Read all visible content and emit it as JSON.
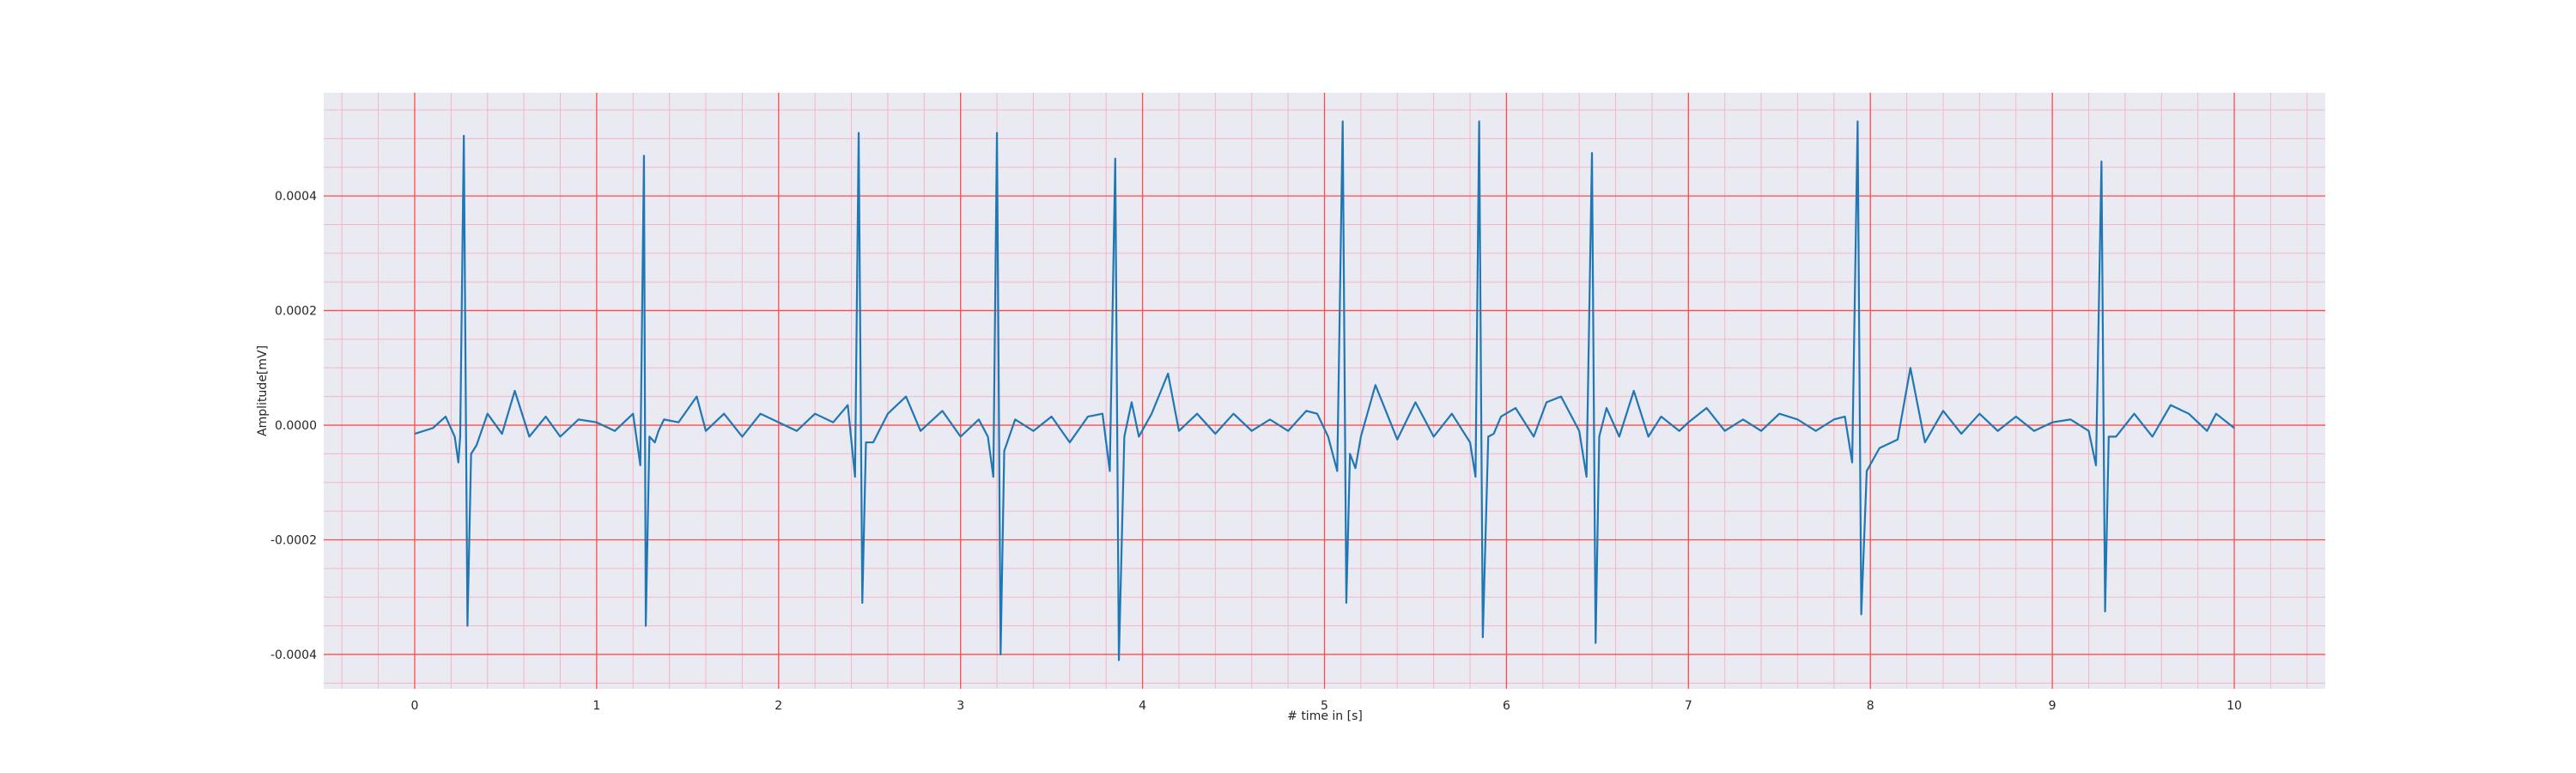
{
  "chart_data": {
    "type": "line",
    "xlabel": "# time in [s]",
    "ylabel": "Amplitude[mV]",
    "xlim": [
      -0.5,
      10.5
    ],
    "ylim": [
      -0.00046,
      0.00058
    ],
    "x_ticks": [
      0,
      1,
      2,
      3,
      4,
      5,
      6,
      7,
      8,
      9,
      10
    ],
    "x_tick_labels": [
      "0",
      "1",
      "2",
      "3",
      "4",
      "5",
      "6",
      "7",
      "8",
      "9",
      "10"
    ],
    "y_ticks": [
      -0.0004,
      -0.0002,
      0.0,
      0.0002,
      0.0004
    ],
    "y_tick_labels": [
      "-0.0004",
      "-0.0002",
      "0.0000",
      "0.0002",
      "0.0004"
    ],
    "grid": {
      "major": true,
      "minor": true,
      "major_color": "#ff4d4d",
      "minor_color": "#f4b6c6"
    },
    "background_color": "#eaeaf2",
    "line_color": "#1f77b4",
    "x_minor_step": 0.2,
    "y_minor_step": 5e-05,
    "series": [
      {
        "x": [
          0,
          0.1,
          0.17,
          0.22,
          0.24,
          0.25,
          0.27,
          0.29,
          0.31,
          0.34,
          0.4,
          0.48,
          0.55,
          0.63,
          0.72,
          0.8,
          0.9,
          1.0,
          1.1,
          1.2,
          1.24,
          1.26,
          1.27,
          1.29,
          1.32,
          1.34,
          1.37,
          1.45,
          1.55,
          1.6,
          1.7,
          1.8,
          1.9,
          2.0,
          2.1,
          2.2,
          2.3,
          2.38,
          2.42,
          2.44,
          2.46,
          2.48,
          2.52,
          2.6,
          2.7,
          2.78,
          2.9,
          3.0,
          3.1,
          3.15,
          3.18,
          3.2,
          3.22,
          3.24,
          3.3,
          3.4,
          3.5,
          3.6,
          3.7,
          3.78,
          3.82,
          3.85,
          3.87,
          3.9,
          3.94,
          3.98,
          4.05,
          4.14,
          4.2,
          4.3,
          4.4,
          4.5,
          4.6,
          4.7,
          4.8,
          4.9,
          4.96,
          5.02,
          5.07,
          5.1,
          5.12,
          5.14,
          5.17,
          5.2,
          5.28,
          5.4,
          5.5,
          5.6,
          5.7,
          5.8,
          5.83,
          5.85,
          5.87,
          5.9,
          5.93,
          5.97,
          6.05,
          6.15,
          6.22,
          6.3,
          6.4,
          6.44,
          6.47,
          6.49,
          6.51,
          6.55,
          6.62,
          6.7,
          6.78,
          6.85,
          6.95,
          7.0,
          7.1,
          7.2,
          7.3,
          7.4,
          7.5,
          7.6,
          7.7,
          7.8,
          7.86,
          7.9,
          7.93,
          7.95,
          7.98,
          8.05,
          8.15,
          8.22,
          8.3,
          8.4,
          8.5,
          8.6,
          8.7,
          8.8,
          8.9,
          9.0,
          9.1,
          9.2,
          9.24,
          9.27,
          9.29,
          9.31,
          9.35,
          9.45,
          9.55,
          9.65,
          9.75,
          9.85,
          9.9,
          10.0
        ],
        "y": [
          -1.5e-05,
          -5e-06,
          1.5e-05,
          -2e-05,
          -6.5e-05,
          -2e-05,
          0.000505,
          -0.00035,
          -5e-05,
          -3.5e-05,
          2e-05,
          -1.5e-05,
          6e-05,
          -2e-05,
          1.5e-05,
          -2e-05,
          1e-05,
          5e-06,
          -1e-05,
          2e-05,
          -7e-05,
          0.00047,
          -0.00035,
          -2e-05,
          -3e-05,
          -1e-05,
          1e-05,
          5e-06,
          5e-05,
          -1e-05,
          2e-05,
          -2e-05,
          2e-05,
          5e-06,
          -1e-05,
          2e-05,
          5e-06,
          3.5e-05,
          -9e-05,
          0.00051,
          -0.00031,
          -3e-05,
          -3e-05,
          2e-05,
          5e-05,
          -1e-05,
          2.5e-05,
          -2e-05,
          1e-05,
          -2e-05,
          -9e-05,
          0.00051,
          -0.0004,
          -4.5e-05,
          1e-05,
          -1e-05,
          1.5e-05,
          -3e-05,
          1.5e-05,
          2e-05,
          -8e-05,
          0.000465,
          -0.00041,
          -2e-05,
          4e-05,
          -2e-05,
          2e-05,
          9e-05,
          -1e-05,
          2e-05,
          -1.5e-05,
          2e-05,
          -1e-05,
          1e-05,
          -1e-05,
          2.5e-05,
          2e-05,
          -2e-05,
          -8e-05,
          0.00053,
          -0.00031,
          -5e-05,
          -7.5e-05,
          -2e-05,
          7e-05,
          -2.5e-05,
          4e-05,
          -2e-05,
          2e-05,
          -3e-05,
          -9e-05,
          0.00053,
          -0.00037,
          -2e-05,
          -1.5e-05,
          1.5e-05,
          3e-05,
          -2e-05,
          4e-05,
          5e-05,
          -1e-05,
          -9e-05,
          0.000475,
          -0.00038,
          -2e-05,
          3e-05,
          -2e-05,
          6e-05,
          -2e-05,
          1.5e-05,
          -1e-05,
          5e-06,
          3e-05,
          -1e-05,
          1e-05,
          -1e-05,
          2e-05,
          1e-05,
          -1e-05,
          1e-05,
          1.5e-05,
          -6.5e-05,
          0.00053,
          -0.00033,
          -8e-05,
          -4e-05,
          -2.5e-05,
          0.0001,
          -3e-05,
          2.5e-05,
          -1.5e-05,
          2e-05,
          -1e-05,
          1.5e-05,
          -1e-05,
          5e-06,
          1e-05,
          -1e-05,
          -7e-05,
          0.00046,
          -0.000325,
          -2e-05,
          -2e-05,
          2e-05,
          -2e-05,
          3.5e-05,
          2e-05,
          -1e-05,
          2e-05,
          -5e-06
        ]
      }
    ]
  }
}
